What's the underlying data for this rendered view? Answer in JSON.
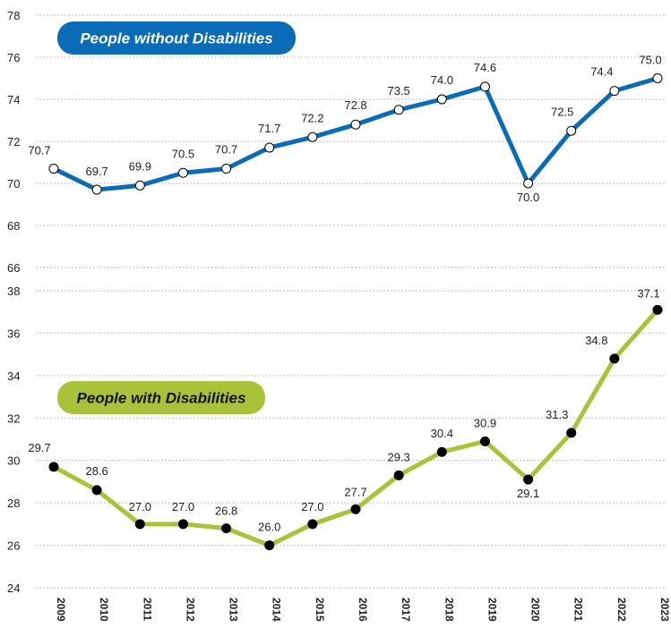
{
  "chart_data": {
    "type": "line",
    "x": [
      "2009",
      "2010",
      "2011",
      "2012",
      "2013",
      "2014",
      "2015",
      "2016",
      "2017",
      "2018",
      "2019",
      "2020",
      "2021",
      "2022",
      "2023"
    ],
    "panels": [
      {
        "name": "People without Disabilities",
        "color": "#0a6bb6",
        "pill_color": "#0a6bb6",
        "pill_text_color": "#ffffff",
        "marker_fill": "#ffffff",
        "values": [
          70.7,
          69.7,
          69.9,
          70.5,
          70.7,
          71.7,
          72.2,
          72.8,
          73.5,
          74.0,
          74.6,
          70.0,
          72.5,
          74.4,
          75.0
        ],
        "labels": [
          "70.7",
          "69.7",
          "69.9",
          "70.5",
          "70.7",
          "71.7",
          "72.2",
          "72.8",
          "73.5",
          "74.0",
          "74.6",
          "70.0",
          "72.5",
          "74.4",
          "75.0"
        ],
        "yticks": [
          66,
          68,
          70,
          72,
          74,
          76,
          78
        ],
        "ylim": [
          66,
          78
        ]
      },
      {
        "name": "People with Disabilities",
        "color": "#a8c23a",
        "pill_color": "#a8c23a",
        "pill_text_color": "#111111",
        "marker_fill": "#000000",
        "values": [
          29.7,
          28.6,
          27.0,
          27.0,
          26.8,
          26.0,
          27.0,
          27.7,
          29.3,
          30.4,
          30.9,
          29.1,
          31.3,
          34.8,
          37.1
        ],
        "labels": [
          "29.7",
          "28.6",
          "27.0",
          "27.0",
          "26.8",
          "26.0",
          "27.0",
          "27.7",
          "29.3",
          "30.4",
          "30.9",
          "29.1",
          "31.3",
          "34.8",
          "37.1"
        ],
        "yticks": [
          24,
          26,
          28,
          30,
          32,
          34,
          36,
          38
        ],
        "ylim": [
          24,
          38
        ]
      }
    ],
    "grid": true
  }
}
